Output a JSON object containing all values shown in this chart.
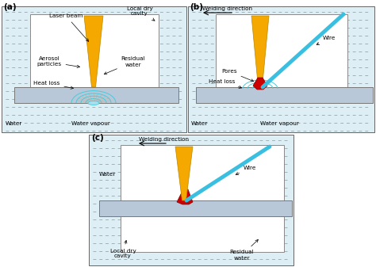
{
  "bg_color": "#ffffff",
  "water_bg_color": "#ddeef5",
  "water_line_color": "#5bbdd0",
  "box_fc": "#ffffff",
  "box_ec": "#888888",
  "plate_color": "#b8c8d8",
  "laser_color": "#f5a800",
  "wire_color": "#3bbfe0",
  "weld_pool_color": "#44ccdd",
  "melt_color": "#cc0000",
  "text_color": "#000000",
  "title_a": "(a)",
  "title_b": "(b)",
  "title_c": "(c)"
}
